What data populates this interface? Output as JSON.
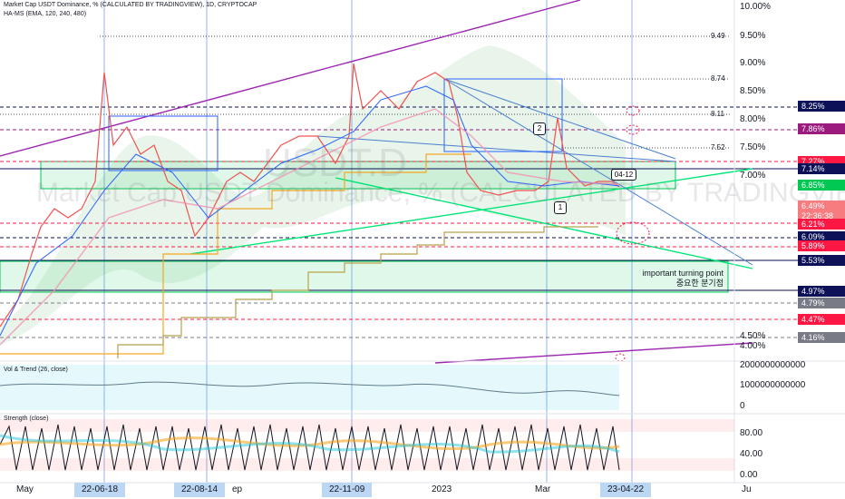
{
  "header": {
    "line1": "Market Cap USDT Dominance, % (CALCULATED BY TRADINGVIEW), 1D, CRYPTOCAP",
    "line2": "HA-MS (EMA, 120, 240, 480)"
  },
  "watermark": {
    "big": "USDT.D",
    "text": "Market Cap USDT Dominance, % (CALCULATED BY TRADINGVIEW)"
  },
  "colors": {
    "background": "#ffffff",
    "price_line": "#ef5350",
    "accent_blue": "#2962ff",
    "green_line": "#00e676",
    "purple_line": "#9c27b0",
    "navy_badge": "#0d1157",
    "red_badge": "#ff1744",
    "green_badge": "#00c853",
    "grey_badge": "#787b86",
    "magenta_badge": "#9c1b7f"
  },
  "y_axis": {
    "ticks": [
      "10.00%",
      "9.50%",
      "9.00%",
      "8.50%",
      "8.00%",
      "7.50%",
      "7.00%",
      "4.50%",
      "4.00%"
    ],
    "levels": [
      "9.49",
      "8.74",
      "8.11",
      "7.52"
    ]
  },
  "price_badges": [
    {
      "label": "8.25%",
      "kind": "navy"
    },
    {
      "label": "7.86%",
      "kind": "magenta"
    },
    {
      "label": "7.27%",
      "kind": "red"
    },
    {
      "label": "7.14%",
      "kind": "navy"
    },
    {
      "label": "6.85%",
      "kind": "green"
    },
    {
      "label": "6.49%",
      "kind": "red",
      "countdown": "22:36:38"
    },
    {
      "label": "6.21%",
      "kind": "red"
    },
    {
      "label": "6.09%",
      "kind": "navy"
    },
    {
      "label": "5.89%",
      "kind": "red"
    },
    {
      "label": "5.53%",
      "kind": "navy"
    },
    {
      "label": "4.97%",
      "kind": "navy"
    },
    {
      "label": "4.79%",
      "kind": "grey"
    },
    {
      "label": "4.47%",
      "kind": "red"
    },
    {
      "label": "4.16%",
      "kind": "grey"
    }
  ],
  "annotations": {
    "turning_point_en": "important turning point",
    "turning_point_ko": "중요한 분기점",
    "date_label": "04-12",
    "box_1": "1",
    "box_2": "2"
  },
  "volume_pane": {
    "title": "Vol & Trend (26, close)",
    "ticks": [
      "2000000000000",
      "1000000000000",
      "0"
    ]
  },
  "strength_pane": {
    "title": "Strength (close)",
    "ticks": [
      "80.00",
      "40.00",
      "0.00"
    ]
  },
  "x_axis": {
    "plain": [
      "May",
      "ep",
      "2023",
      "Mar",
      "Ju"
    ],
    "highlighted": [
      "22-06-18",
      "22-08-14",
      "22-11-09",
      "23-04-22"
    ]
  },
  "chart_data": {
    "type": "line",
    "title": "Market Cap USDT Dominance, % (CALCULATED BY TRADINGVIEW), 1D, CRYPTOCAP",
    "ylim": [
      3.9,
      10.1
    ],
    "x": [
      "May",
      "22-06-18",
      "22-08-14",
      "Sep",
      "22-11-09",
      "2023",
      "Mar",
      "23-04-22"
    ],
    "series": [
      {
        "name": "",
        "values": [
          4.1,
          8.2,
          6.0,
          7.2,
          8.6,
          7.5,
          6.9,
          6.49
        ]
      }
    ],
    "horizontal_levels": [
      9.49,
      8.74,
      8.11,
      7.52
    ],
    "last_value": 6.49
  }
}
